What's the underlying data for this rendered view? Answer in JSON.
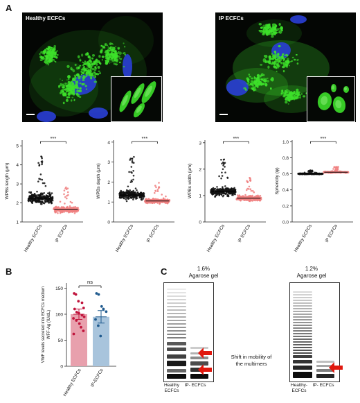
{
  "panels": {
    "a": "A",
    "b": "B",
    "c": "C"
  },
  "micrographs": {
    "left_label": "Healthy ECFCs",
    "right_label": "IP ECFCs",
    "colors": {
      "green": "#3de02a",
      "blue": "#2a3fd6",
      "background": "#040604"
    }
  },
  "scatter_plots": [
    {
      "ylabel": "WPBs length (μm)",
      "yticks": [
        "1",
        "2",
        "3",
        "4",
        "5"
      ],
      "ymin": 1,
      "ymax": 5.3,
      "mean_healthy": 2.25,
      "mean_ip": 1.65,
      "max_healthy": 4.8,
      "max_ip": 3.0,
      "significance": "***"
    },
    {
      "ylabel": "WPBs depth (μm)",
      "yticks": [
        "0",
        "1",
        "2",
        "3",
        "4"
      ],
      "ymin": 0,
      "ymax": 4.1,
      "mean_healthy": 1.35,
      "mean_ip": 1.05,
      "max_healthy": 3.3,
      "max_ip": 2.1,
      "significance": "***"
    },
    {
      "ylabel": "WPBs width (μm)",
      "yticks": [
        "0",
        "1",
        "2",
        "3"
      ],
      "ymin": 0,
      "ymax": 3.1,
      "mean_healthy": 1.15,
      "mean_ip": 0.9,
      "max_healthy": 2.5,
      "max_ip": 1.8,
      "significance": "***"
    },
    {
      "ylabel": "Sphericity (ψ)",
      "yticks": [
        "0.0",
        "0.2",
        "0.4",
        "0.6",
        "0.8",
        "1.0"
      ],
      "ymin": 0,
      "ymax": 1.02,
      "mean_healthy": 0.6,
      "mean_ip": 0.62,
      "max_healthy": 0.65,
      "max_ip": 0.69,
      "significance": "***"
    }
  ],
  "scatter_categories": [
    "Healthy ECFCs",
    "IP ECFCs"
  ],
  "scatter_colors": {
    "healthy": "#111111",
    "ip": "#f08080"
  },
  "bar_chart": {
    "ylabel_line1": "VWF levels secreted into ECFCs medium",
    "ylabel_line2": "WFF-Ag (IU/dL)",
    "yticks": [
      "0",
      "50",
      "100",
      "150"
    ],
    "ymax": 160,
    "categories": [
      "Healthy ECFCs",
      "IP-ECFCs"
    ],
    "means": [
      100,
      95
    ],
    "sem": [
      10,
      12
    ],
    "significance": "ns",
    "colors": {
      "healthy_bar": "#e8a0ad",
      "healthy_point": "#c0143c",
      "ip_bar": "#a8c4dc",
      "ip_point": "#1f5a8e"
    },
    "points_healthy": [
      140,
      138,
      125,
      122,
      112,
      110,
      104,
      102,
      98,
      95,
      92,
      88,
      82,
      75,
      68,
      62
    ],
    "points_ip": [
      140,
      138,
      115,
      110,
      105,
      90,
      78,
      58
    ]
  },
  "chart_data": [
    {
      "type": "scatter",
      "title": "",
      "categories": [
        "Healthy ECFCs",
        "IP ECFCs"
      ],
      "ylabel": "WPBs length (μm)",
      "ylim": [
        1,
        5
      ],
      "series": [
        {
          "name": "Healthy ECFCs",
          "mean": 2.25
        },
        {
          "name": "IP ECFCs",
          "mean": 1.65
        }
      ],
      "annotation": "***"
    },
    {
      "type": "scatter",
      "title": "",
      "categories": [
        "Healthy ECFCs",
        "IP ECFCs"
      ],
      "ylabel": "WPBs depth (μm)",
      "ylim": [
        0,
        4
      ],
      "series": [
        {
          "name": "Healthy ECFCs",
          "mean": 1.35
        },
        {
          "name": "IP ECFCs",
          "mean": 1.05
        }
      ],
      "annotation": "***"
    },
    {
      "type": "scatter",
      "title": "",
      "categories": [
        "Healthy ECFCs",
        "IP ECFCs"
      ],
      "ylabel": "WPBs width (μm)",
      "ylim": [
        0,
        3
      ],
      "series": [
        {
          "name": "Healthy ECFCs",
          "mean": 1.15
        },
        {
          "name": "IP ECFCs",
          "mean": 0.9
        }
      ],
      "annotation": "***"
    },
    {
      "type": "scatter",
      "title": "",
      "categories": [
        "Healthy ECFCs",
        "IP ECFCs"
      ],
      "ylabel": "Sphericity (ψ)",
      "ylim": [
        0,
        1
      ],
      "series": [
        {
          "name": "Healthy ECFCs",
          "mean": 0.6
        },
        {
          "name": "IP ECFCs",
          "mean": 0.62
        }
      ],
      "annotation": "***"
    },
    {
      "type": "bar",
      "title": "",
      "categories": [
        "Healthy ECFCs",
        "IP-ECFCs"
      ],
      "values": [
        100,
        95
      ],
      "ylabel": "VWF levels secreted into ECFCs medium WFF-Ag (IU/dL)",
      "ylim": [
        0,
        150
      ],
      "annotation": "ns"
    }
  ],
  "gels": {
    "left_title_line1": "1.6%",
    "left_title_line2": "Agarose gel",
    "right_title_line1": "1.2%",
    "right_title_line2": "Agarose gel",
    "left_lane1": "Healthy ECFCs",
    "left_lane2": "IP- ECFCs",
    "right_lane1": "Healthy- ECFCs",
    "right_lane2": "IP- ECFCs",
    "shift_line1": "Shift in mobility of",
    "shift_line2": "the multimers",
    "arrow_color": "#e0180e"
  }
}
